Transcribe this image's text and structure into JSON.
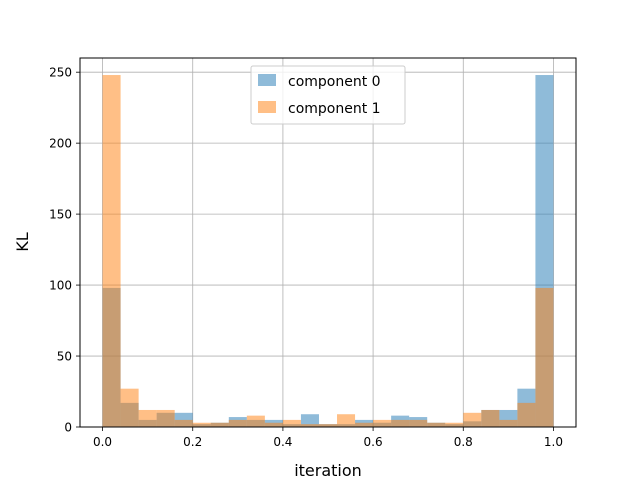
{
  "chart_data": {
    "type": "bar",
    "title": "",
    "xlabel": "iteration",
    "ylabel": "KL",
    "xlim": [
      -0.05,
      1.05
    ],
    "ylim": [
      0,
      260
    ],
    "grid": true,
    "legend_position": "top-center",
    "bin_width": 0.04,
    "x_ticks": [
      "0.0",
      "0.2",
      "0.4",
      "0.6",
      "0.8",
      "1.0"
    ],
    "y_ticks": [
      "0",
      "50",
      "100",
      "150",
      "200",
      "250"
    ],
    "bin_starts": [
      0,
      0.04,
      0.08,
      0.12,
      0.16,
      0.2,
      0.24,
      0.28,
      0.32,
      0.36,
      0.4,
      0.44,
      0.48,
      0.52,
      0.56,
      0.6,
      0.64,
      0.68,
      0.72,
      0.76,
      0.8,
      0.84,
      0.88,
      0.92,
      0.96
    ],
    "series": [
      {
        "name": "component 0",
        "color": "#1f77b4",
        "values": [
          98,
          17,
          5,
          10,
          10,
          2,
          3,
          7,
          5,
          5,
          2,
          9,
          2,
          2,
          5,
          3,
          8,
          7,
          3,
          2,
          4,
          12,
          12,
          27,
          248
        ]
      },
      {
        "name": "component 1",
        "color": "#ff7f0e",
        "values": [
          248,
          27,
          12,
          12,
          5,
          3,
          3,
          5,
          8,
          3,
          5,
          2,
          2,
          9,
          3,
          5,
          5,
          5,
          3,
          3,
          10,
          12,
          5,
          17,
          98
        ]
      }
    ]
  }
}
